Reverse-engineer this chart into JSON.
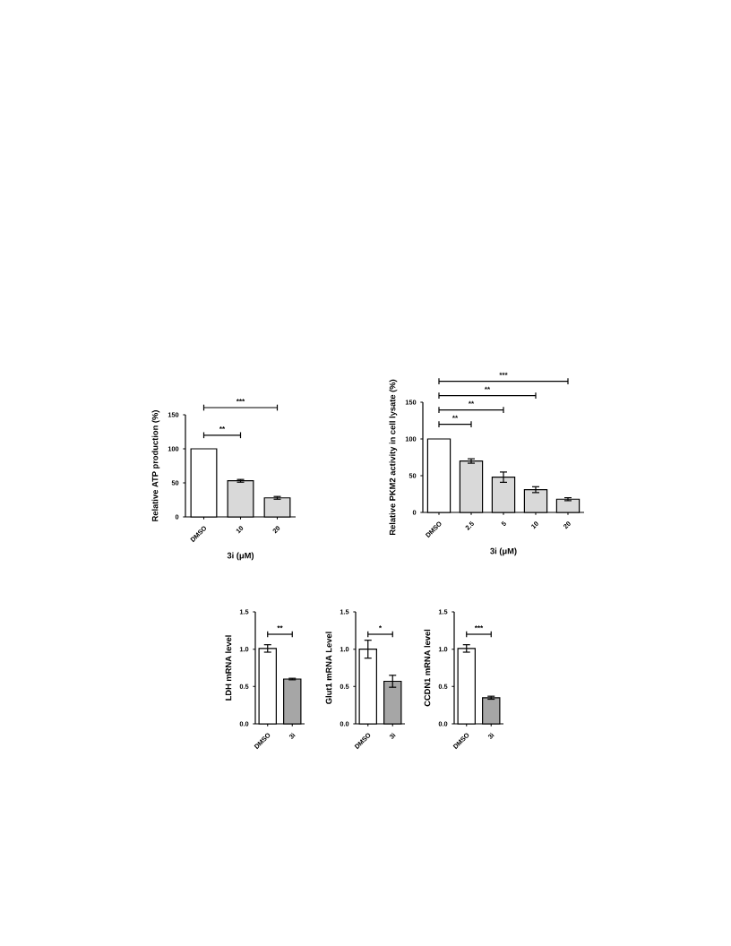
{
  "chart_data": [
    {
      "type": "bar",
      "categories": [
        "DMSO",
        "10",
        "20"
      ],
      "values": [
        100,
        53,
        28
      ],
      "errors": [
        null,
        2,
        2
      ],
      "colors": [
        "#ffffff",
        "#d9d9d9",
        "#d9d9d9"
      ],
      "ylim": [
        0,
        150
      ],
      "yticks": [
        0,
        50,
        100,
        150
      ],
      "xlabel": "3i (μM)",
      "ylabel": "Relative ATP production (%)",
      "annotations": [
        "**",
        "***"
      ]
    },
    {
      "type": "bar",
      "categories": [
        "DMSO",
        "2.5",
        "5",
        "10",
        "20"
      ],
      "values": [
        100,
        70,
        48,
        31,
        18
      ],
      "errors": [
        null,
        3,
        7,
        4,
        2
      ],
      "colors": [
        "#ffffff",
        "#d9d9d9",
        "#d9d9d9",
        "#d9d9d9",
        "#d9d9d9"
      ],
      "ylim": [
        0,
        150
      ],
      "yticks": [
        0,
        50,
        100,
        150
      ],
      "xlabel": "3i (μM)",
      "ylabel": "Relative PKM2 activity in cell lysate (%)",
      "annotations": [
        "**",
        "**",
        "**",
        "***"
      ]
    },
    {
      "type": "bar",
      "categories": [
        "DMSO",
        "3i"
      ],
      "values": [
        1.01,
        0.6
      ],
      "errors": [
        0.05,
        0.01
      ],
      "colors": [
        "#ffffff",
        "#a6a6a6"
      ],
      "ylim": [
        0,
        1.5
      ],
      "yticks": [
        {
          "value": 0,
          "label": "0.0"
        },
        {
          "value": 0.5,
          "label": "0.5"
        },
        {
          "value": 1,
          "label": "1.0"
        },
        {
          "value": 1.5,
          "label": "1.5"
        }
      ],
      "ylabel": "LDH mRNA level",
      "annotations": [
        "**"
      ]
    },
    {
      "type": "bar",
      "categories": [
        "DMSO",
        "3i"
      ],
      "values": [
        1.0,
        0.57
      ],
      "errors": [
        0.12,
        0.08
      ],
      "colors": [
        "#ffffff",
        "#a6a6a6"
      ],
      "ylim": [
        0,
        1.5
      ],
      "yticks": [
        {
          "value": 0,
          "label": "0.0"
        },
        {
          "value": 0.5,
          "label": "0.5"
        },
        {
          "value": 1,
          "label": "1.0"
        },
        {
          "value": 1.5,
          "label": "1.5"
        }
      ],
      "ylabel": "Glut1 mRNA Level",
      "annotations": [
        "*"
      ]
    },
    {
      "type": "bar",
      "categories": [
        "DMSO",
        "3i"
      ],
      "values": [
        1.01,
        0.35
      ],
      "errors": [
        0.05,
        0.02
      ],
      "colors": [
        "#ffffff",
        "#a6a6a6"
      ],
      "ylim": [
        0,
        1.5
      ],
      "yticks": [
        {
          "value": 0,
          "label": "0.0"
        },
        {
          "value": 0.5,
          "label": "0.5"
        },
        {
          "value": 1,
          "label": "1.0"
        },
        {
          "value": 1.5,
          "label": "1.5"
        }
      ],
      "ylabel": "CCDN1 mRNA level",
      "annotations": [
        "***"
      ]
    }
  ]
}
